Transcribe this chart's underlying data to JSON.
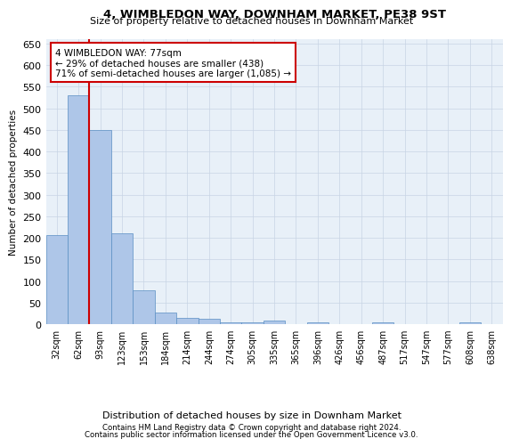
{
  "title": "4, WIMBLEDON WAY, DOWNHAM MARKET, PE38 9ST",
  "subtitle": "Size of property relative to detached houses in Downham Market",
  "xlabel": "Distribution of detached houses by size in Downham Market",
  "ylabel": "Number of detached properties",
  "footnote1": "Contains HM Land Registry data © Crown copyright and database right 2024.",
  "footnote2": "Contains public sector information licensed under the Open Government Licence v3.0.",
  "annotation_line1": "4 WIMBLEDON WAY: 77sqm",
  "annotation_line2": "← 29% of detached houses are smaller (438)",
  "annotation_line3": "71% of semi-detached houses are larger (1,085) →",
  "categories": [
    "32sqm",
    "62sqm",
    "93sqm",
    "123sqm",
    "153sqm",
    "184sqm",
    "214sqm",
    "244sqm",
    "274sqm",
    "305sqm",
    "335sqm",
    "365sqm",
    "396sqm",
    "426sqm",
    "456sqm",
    "487sqm",
    "517sqm",
    "547sqm",
    "577sqm",
    "608sqm",
    "638sqm"
  ],
  "values": [
    207,
    530,
    450,
    210,
    78,
    27,
    15,
    12,
    5,
    5,
    8,
    0,
    5,
    0,
    0,
    5,
    0,
    0,
    0,
    5,
    0
  ],
  "bar_color": "#aec6e8",
  "bar_edgecolor": "#5a8fc3",
  "vline_x": 1.5,
  "vline_color": "#cc0000",
  "annotation_box_color": "#cc0000",
  "background_color": "#ffffff",
  "axes_bg_color": "#e8f0f8",
  "grid_color": "#c8d4e4",
  "ylim": [
    0,
    660
  ],
  "yticks": [
    0,
    50,
    100,
    150,
    200,
    250,
    300,
    350,
    400,
    450,
    500,
    550,
    600,
    650
  ]
}
